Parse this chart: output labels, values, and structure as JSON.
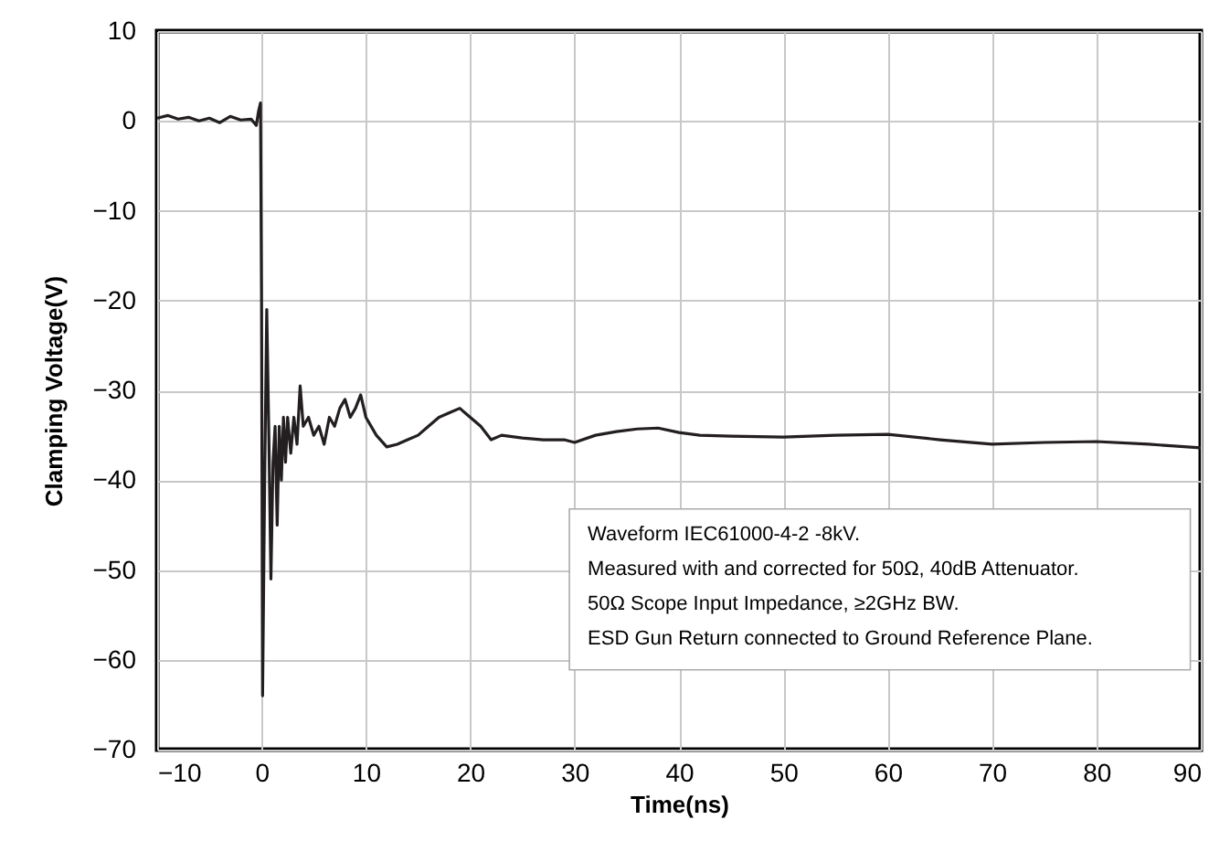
{
  "chart_data": {
    "type": "line",
    "xlabel": "Time(ns)",
    "ylabel": "Clamping Voltage(V)",
    "annotations": [
      "Waveform IEC61000-4-2 -8kV.",
      "Measured with and corrected for 50Ω, 40dB Attenuator.",
      "50Ω Scope Input Impedance, ≥2GHz BW.",
      "ESD Gun Return connected to Ground Reference Plane."
    ],
    "x": [
      -10,
      -9,
      -8,
      -7,
      -6,
      -5,
      -4,
      -3,
      -2,
      -1,
      -0.5,
      -0.3,
      -0.1,
      0,
      0.1,
      0.3,
      0.5,
      0.7,
      0.9,
      1.1,
      1.3,
      1.5,
      1.7,
      1.9,
      2.1,
      2.3,
      2.5,
      2.8,
      3.1,
      3.4,
      3.7,
      4,
      4.5,
      5,
      5.5,
      6,
      6.5,
      7,
      7.5,
      8,
      8.5,
      9,
      9.5,
      10,
      11,
      12,
      13,
      14,
      15,
      16,
      17,
      18,
      19,
      20,
      21,
      22,
      23,
      25,
      27,
      29,
      30,
      32,
      34,
      36,
      38,
      40,
      42,
      45,
      50,
      55,
      60,
      65,
      70,
      75,
      80,
      85,
      90
    ],
    "series": [
      {
        "color": "#231f20",
        "values": [
          0.3,
          0.6,
          0.2,
          0.4,
          0,
          0.3,
          -0.2,
          0.5,
          0.1,
          0.2,
          -0.5,
          1,
          2,
          -20,
          -64,
          -40,
          -21,
          -35,
          -51,
          -38,
          -34,
          -45,
          -34,
          -40,
          -33,
          -38,
          -33,
          -37,
          -33,
          -36,
          -29.5,
          -34,
          -33,
          -35,
          -34,
          -36,
          -33,
          -34,
          -32,
          -31,
          -33,
          -32,
          -30.5,
          -33,
          -35,
          -36.3,
          -36,
          -35.5,
          -35,
          -34,
          -33,
          -32.5,
          -32,
          -33,
          -34,
          -35.5,
          -35,
          -35.3,
          -35.5,
          -35.5,
          -35.8,
          -35,
          -34.6,
          -34.3,
          -34.2,
          -34.7,
          -35,
          -35.1,
          -35.2,
          -35,
          -34.9,
          -35.5,
          -36,
          -35.8,
          -35.7,
          -36,
          -36.4
        ]
      }
    ],
    "xlim": [
      -10,
      90
    ],
    "ylim": [
      -70,
      10
    ],
    "xticks": [
      -10,
      0,
      10,
      20,
      30,
      40,
      50,
      60,
      70,
      80,
      90
    ],
    "yticks": [
      -70,
      -60,
      -50,
      -40,
      -30,
      -20,
      -10,
      0,
      10
    ],
    "grid": true,
    "marker": "none",
    "line_style": "solid"
  }
}
